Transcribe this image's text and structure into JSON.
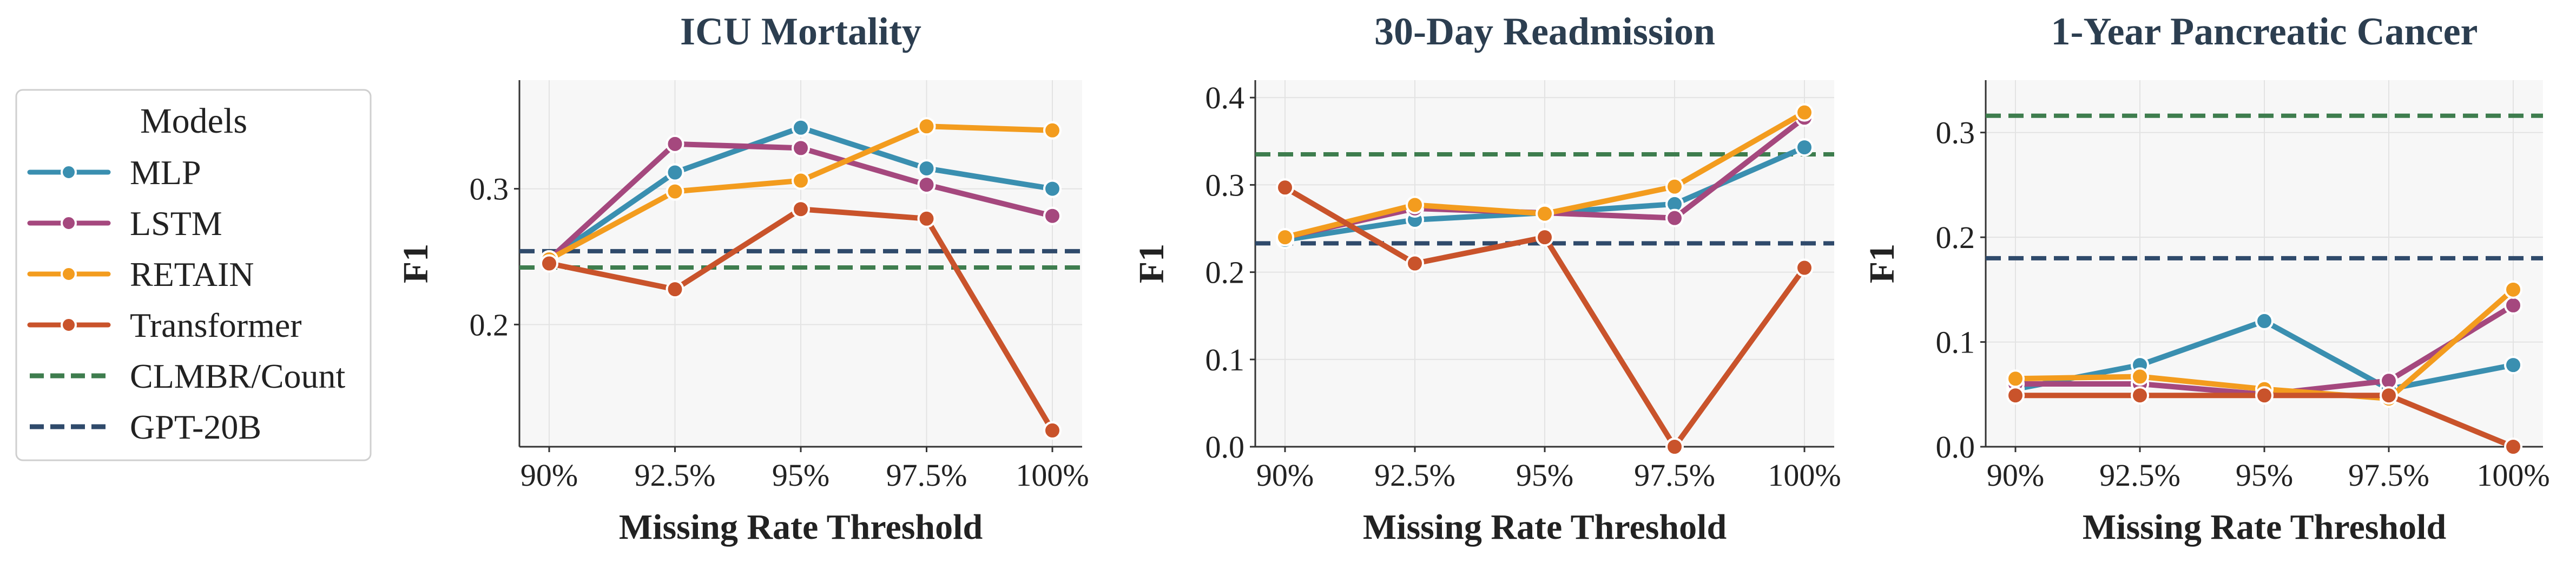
{
  "legend": {
    "title": "Models",
    "entries": [
      {
        "label": "MLP",
        "color": "#3a8fb0",
        "style": "solid-marker"
      },
      {
        "label": "LSTM",
        "color": "#a5487e",
        "style": "solid-marker"
      },
      {
        "label": "RETAIN",
        "color": "#f39c1e",
        "style": "solid-marker"
      },
      {
        "label": "Transformer",
        "color": "#c9532b",
        "style": "solid-marker"
      },
      {
        "label": "CLMBR/Count",
        "color": "#3e7d4e",
        "style": "dashed"
      },
      {
        "label": "GPT-20B",
        "color": "#2f4a6b",
        "style": "dashed"
      }
    ]
  },
  "chart_data": [
    {
      "type": "line",
      "title": "ICU Mortality",
      "xlabel": "Missing Rate Threshold",
      "ylabel": "F1",
      "categories": [
        "90%",
        "92.5%",
        "95%",
        "97.5%",
        "100%"
      ],
      "ylim": [
        0.11,
        0.38
      ],
      "yticks": [
        0.2,
        0.3
      ],
      "ytick_labels": [
        "0.2",
        "0.3"
      ],
      "series": [
        {
          "name": "MLP",
          "color": "#3a8fb0",
          "values": [
            0.248,
            0.312,
            0.345,
            0.315,
            0.3
          ]
        },
        {
          "name": "LSTM",
          "color": "#a5487e",
          "values": [
            0.248,
            0.333,
            0.33,
            0.303,
            0.28
          ]
        },
        {
          "name": "RETAIN",
          "color": "#f39c1e",
          "values": [
            0.248,
            0.298,
            0.306,
            0.346,
            0.343
          ]
        },
        {
          "name": "Transformer",
          "color": "#c9532b",
          "values": [
            0.245,
            0.226,
            0.285,
            0.278,
            0.122
          ]
        }
      ],
      "baselines": [
        {
          "name": "CLMBR/Count",
          "color": "#3e7d4e",
          "value": 0.242
        },
        {
          "name": "GPT-20B",
          "color": "#2f4a6b",
          "value": 0.254
        }
      ]
    },
    {
      "type": "line",
      "title": "30-Day Readmission",
      "xlabel": "Missing Rate Threshold",
      "ylabel": "F1",
      "categories": [
        "90%",
        "92.5%",
        "95%",
        "97.5%",
        "100%"
      ],
      "ylim": [
        0.0,
        0.42
      ],
      "yticks": [
        0.0,
        0.1,
        0.2,
        0.3,
        0.4
      ],
      "ytick_labels": [
        "0.0",
        "0.1",
        "0.2",
        "0.3",
        "0.4"
      ],
      "series": [
        {
          "name": "MLP",
          "color": "#3a8fb0",
          "values": [
            0.237,
            0.26,
            0.268,
            0.278,
            0.343
          ]
        },
        {
          "name": "LSTM",
          "color": "#a5487e",
          "values": [
            0.24,
            0.273,
            0.268,
            0.262,
            0.377
          ]
        },
        {
          "name": "RETAIN",
          "color": "#f39c1e",
          "values": [
            0.24,
            0.277,
            0.267,
            0.298,
            0.383
          ]
        },
        {
          "name": "Transformer",
          "color": "#c9532b",
          "values": [
            0.297,
            0.21,
            0.24,
            0.0,
            0.205
          ]
        }
      ],
      "baselines": [
        {
          "name": "CLMBR/Count",
          "color": "#3e7d4e",
          "value": 0.335
        },
        {
          "name": "GPT-20B",
          "color": "#2f4a6b",
          "value": 0.233
        }
      ]
    },
    {
      "type": "line",
      "title": "1-Year Pancreatic Cancer",
      "xlabel": "Missing Rate Threshold",
      "ylabel": "F1",
      "categories": [
        "90%",
        "92.5%",
        "95%",
        "97.5%",
        "100%"
      ],
      "ylim": [
        0.0,
        0.35
      ],
      "yticks": [
        0.0,
        0.1,
        0.2,
        0.3
      ],
      "ytick_labels": [
        "0.0",
        "0.1",
        "0.2",
        "0.3"
      ],
      "series": [
        {
          "name": "MLP",
          "color": "#3a8fb0",
          "values": [
            0.055,
            0.078,
            0.12,
            0.055,
            0.078
          ]
        },
        {
          "name": "LSTM",
          "color": "#a5487e",
          "values": [
            0.06,
            0.06,
            0.05,
            0.063,
            0.135
          ]
        },
        {
          "name": "RETAIN",
          "color": "#f39c1e",
          "values": [
            0.065,
            0.067,
            0.055,
            0.046,
            0.15
          ]
        },
        {
          "name": "Transformer",
          "color": "#c9532b",
          "values": [
            0.049,
            0.049,
            0.049,
            0.049,
            0.0
          ]
        }
      ],
      "baselines": [
        {
          "name": "CLMBR/Count",
          "color": "#3e7d4e",
          "value": 0.316
        },
        {
          "name": "GPT-20B",
          "color": "#2f4a6b",
          "value": 0.18
        }
      ]
    }
  ]
}
